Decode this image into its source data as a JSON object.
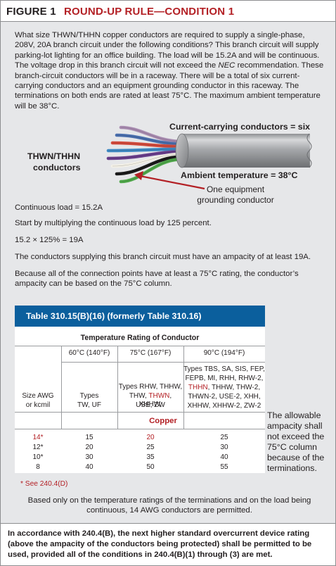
{
  "header": {
    "figure_label": "FIGURE 1",
    "title": "ROUND-UP RULE—CONDITION 1"
  },
  "intro": {
    "before_nec": "What size THWN/THHN copper conductors are required to supply a single-phase, 208V, 20A branch circuit under the following conditions? This branch circuit will supply parking-lot lighting for an office building. The load will be 15.2A and will be continuous. The voltage drop in this branch circuit will not exceed the ",
    "nec": "NEC",
    "after_nec": " recommendation. These branch-circuit conductors will be in a raceway. There will be a total of six current-carrying conductors and an equipment grounding conductor in this raceway. The terminations on both ends are rated at least 75°C. The maximum ambient temperature will be 38°C."
  },
  "illustration": {
    "current_carrying_label": "Current-carrying conductors = six",
    "conductor_type_line1": "THWN/THHN",
    "conductor_type_line2": "conductors",
    "ambient_label": "Ambient temperature = 38°C",
    "egc_line1": "One equipment",
    "egc_line2": "grounding conductor",
    "wire_colors": [
      "#a88bb0",
      "#4a6fae",
      "#d34a3c",
      "#3f8ac4",
      "#6a3f8c",
      "#f3f0e6",
      "#1b1b1b",
      "#4fa84a"
    ],
    "arrow_color": "#b32025",
    "cable_color": "#a7a9ac"
  },
  "calc": {
    "continuous_load": "Continuous load = 15.2A",
    "step1": "Start by multiplying the continuous load by 125 percent.",
    "formula": "15.2 × 125% = 19A",
    "requirement": "The conductors supplying this branch circuit must have an ampacity of at least 19A.",
    "column_note": "Because all of the connection points have at least a 75°C rating, the conductor’s ampacity can be based on the 75°C column."
  },
  "table": {
    "title": "Table 310.15(B)(16) (formerly Table 310.16)",
    "temp_rating_header": "Temperature Rating of Conductor",
    "col60": "60°C (140°F)",
    "col75": "75°C (167°F)",
    "col90": "90°C (194°F)",
    "size_line1": "Size AWG",
    "size_line2": "or kcmil",
    "types60_line1": "Types",
    "types60_line2": "TW, UF",
    "types75_line1": "Types RHW, THHW,",
    "types75_line2a": "THW, ",
    "types75_line2b": "THWN",
    "types75_line2c": ", XHHW,",
    "types75_line3": "USE, ZW",
    "types90_line1": "Types TBS, SA, SIS, FEP,",
    "types90_line2": "FEPB, MI, RHH, RHW-2,",
    "types90_line3a": "THHN",
    "types90_line3b": ", THHW, THW-2,",
    "types90_line4": "THWN-2, USE-2, XHH,",
    "types90_line5": "XHHW, XHHW-2, ZW-2",
    "material": "Copper",
    "rows": [
      {
        "size": "14*",
        "c60": "15",
        "c75": "20",
        "c90": "25",
        "highlight": true
      },
      {
        "size": "12*",
        "c60": "20",
        "c75": "25",
        "c90": "30",
        "highlight": false
      },
      {
        "size": "10*",
        "c60": "30",
        "c75": "35",
        "c90": "40",
        "highlight": false
      },
      {
        "size": "8",
        "c60": "40",
        "c75": "50",
        "c90": "55",
        "highlight": false
      }
    ],
    "footnote": "* See 240.4(D)"
  },
  "side_note": "The allowable ampacity shall not exceed the 75°C column because of the terminations.",
  "conclusion": "Based only on the temperature ratings of the terminations and on the load being continuous, 14 AWG conductors are permitted.",
  "bottom_note": "In accordance with 240.4(B), the next higher standard overcurrent device rating (above the ampacity of the conductors being protected) shall be permitted to be used, provided all of the conditions in 240.4(B)(1) through (3) are met."
}
